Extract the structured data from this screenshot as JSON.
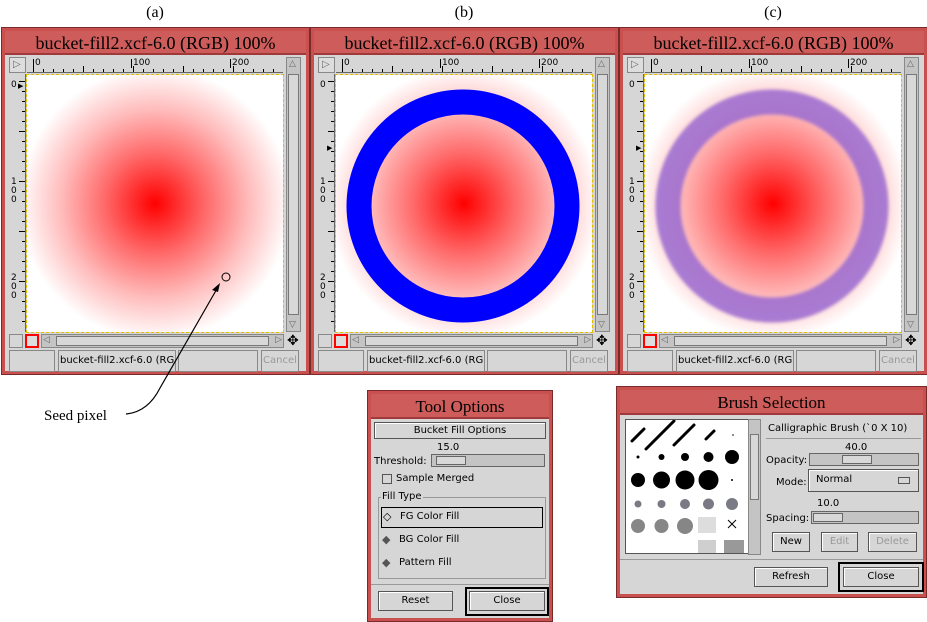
{
  "captions": [
    "(a)",
    "(b)",
    "(c)"
  ],
  "image_windows": [
    {
      "title": "bucket-fill2.xcf-6.0 (RGB) 100%",
      "status_name": "bucket-fill2.xcf-6.0 (RGB",
      "cancel_label": "Cancel",
      "variant": "gradient"
    },
    {
      "title": "bucket-fill2.xcf-6.0 (RGB) 100%",
      "status_name": "bucket-fill2.xcf-6.0 (RGB",
      "cancel_label": "Cancel",
      "variant": "ring-solid",
      "ring_color": "#0000ff"
    },
    {
      "title": "bucket-fill2.xcf-6.0 (RGB) 100%",
      "status_name": "bucket-fill2.xcf-6.0 (RGB",
      "cancel_label": "Cancel",
      "variant": "ring-blended",
      "ring_color": "#9a6ad0"
    }
  ],
  "rulers": {
    "horizontal": [
      "0",
      "100",
      "200"
    ],
    "vertical": [
      "0",
      "100",
      "200"
    ]
  },
  "annotation": {
    "label": "Seed pixel"
  },
  "tool_options": {
    "title": "Tool Options",
    "header": "Bucket Fill Options",
    "threshold_label": "Threshold:",
    "threshold_value": "15.0",
    "sample_merged_label": "Sample Merged",
    "sample_merged_checked": false,
    "fill_type_label": "Fill Type",
    "fill_types": [
      "FG Color Fill",
      "BG Color Fill",
      "Pattern Fill"
    ],
    "selected_fill_type": "FG Color Fill",
    "reset_label": "Reset",
    "close_label": "Close"
  },
  "brush_selection": {
    "title": "Brush Selection",
    "brush_name": "Calligraphic Brush  (`0 X 10)",
    "opacity_label": "Opacity:",
    "opacity_value": "40.0",
    "mode_label": "Mode:",
    "mode_value": "Normal",
    "spacing_label": "Spacing:",
    "spacing_value": "10.0",
    "new_label": "New",
    "edit_label": "Edit",
    "delete_label": "Delete",
    "refresh_label": "Refresh",
    "close_label": "Close"
  }
}
